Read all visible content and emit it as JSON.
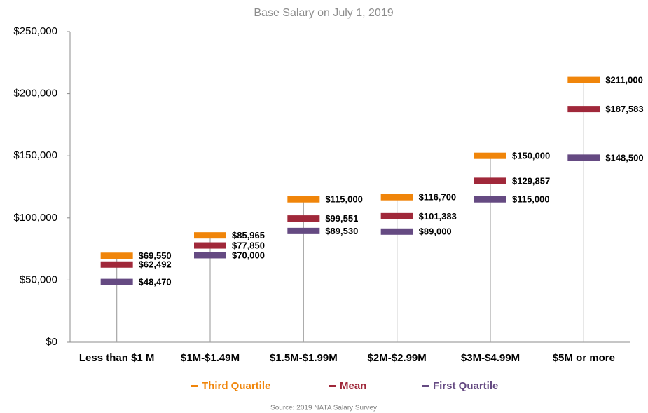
{
  "chart_data": {
    "type": "marker",
    "title": "Base Salary on July 1, 2019",
    "categories": [
      "Less than $1 M",
      "$1M-$1.49M",
      "$1.5M-$1.99M",
      "$2M-$2.99M",
      "$3M-$4.99M",
      "$5M or more"
    ],
    "series": [
      {
        "name": "Third Quartile",
        "color": "#f0850a",
        "values": [
          69550,
          85965,
          115000,
          116700,
          150000,
          211000
        ],
        "value_labels": [
          "$69,550",
          "$85,965",
          "$115,000",
          "$116,700",
          "$150,000",
          "$211,000"
        ]
      },
      {
        "name": "Mean",
        "color": "#a0283a",
        "values": [
          62492,
          77850,
          99551,
          101383,
          129857,
          187583
        ],
        "value_labels": [
          "$62,492",
          "$77,850",
          "$99,551",
          "$101,383",
          "$129,857",
          "$187,583"
        ]
      },
      {
        "name": "First Quartile",
        "color": "#654a82",
        "values": [
          48470,
          70000,
          89530,
          89000,
          115000,
          148500
        ],
        "value_labels": [
          "$48,470",
          "$70,000",
          "$89,530",
          "$89,000",
          "$115,000",
          "$148,500"
        ]
      }
    ],
    "ylim": [
      0,
      250000
    ],
    "yticks": [
      {
        "value": 0,
        "label": "$0"
      },
      {
        "value": 50000,
        "label": "$50,000"
      },
      {
        "value": 100000,
        "label": "$100,000"
      },
      {
        "value": 150000,
        "label": "$150,000"
      },
      {
        "value": 200000,
        "label": "$200,000"
      },
      {
        "value": 250000,
        "label": "$250,000"
      }
    ],
    "legend": "bottom",
    "source": "Source: 2019 NATA Salary Survey"
  }
}
